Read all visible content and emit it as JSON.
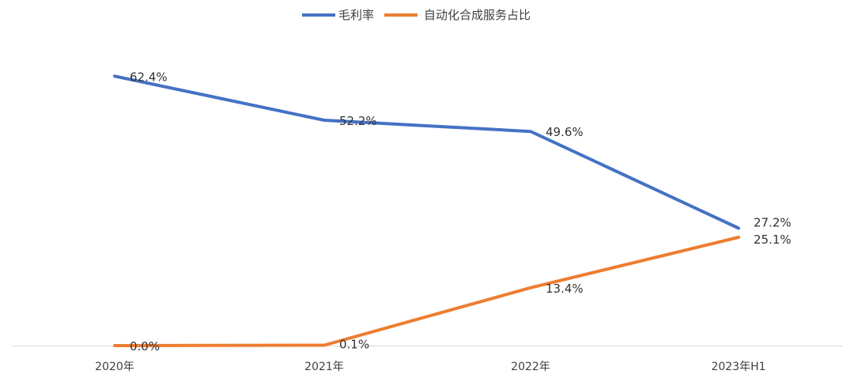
{
  "chart_data": {
    "type": "line",
    "title": "",
    "xlabel": "",
    "ylabel": "",
    "categories": [
      "2020年",
      "2021年",
      "2022年",
      "2023年H1"
    ],
    "ylim": [
      0,
      70
    ],
    "grid": false,
    "legend_position": "top-center",
    "series": [
      {
        "name": "毛利率",
        "color": "#4472C4",
        "values": [
          62.4,
          52.2,
          49.6,
          27.2
        ],
        "labels": [
          "62.4%",
          "52.2%",
          "49.6%",
          "27.2%"
        ]
      },
      {
        "name": "自动化合成服务占比",
        "color": "#ED7D31",
        "values": [
          0.0,
          0.1,
          13.4,
          25.1
        ],
        "labels": [
          "0.0%",
          "0.1%",
          "13.4%",
          "25.1%"
        ]
      }
    ]
  }
}
